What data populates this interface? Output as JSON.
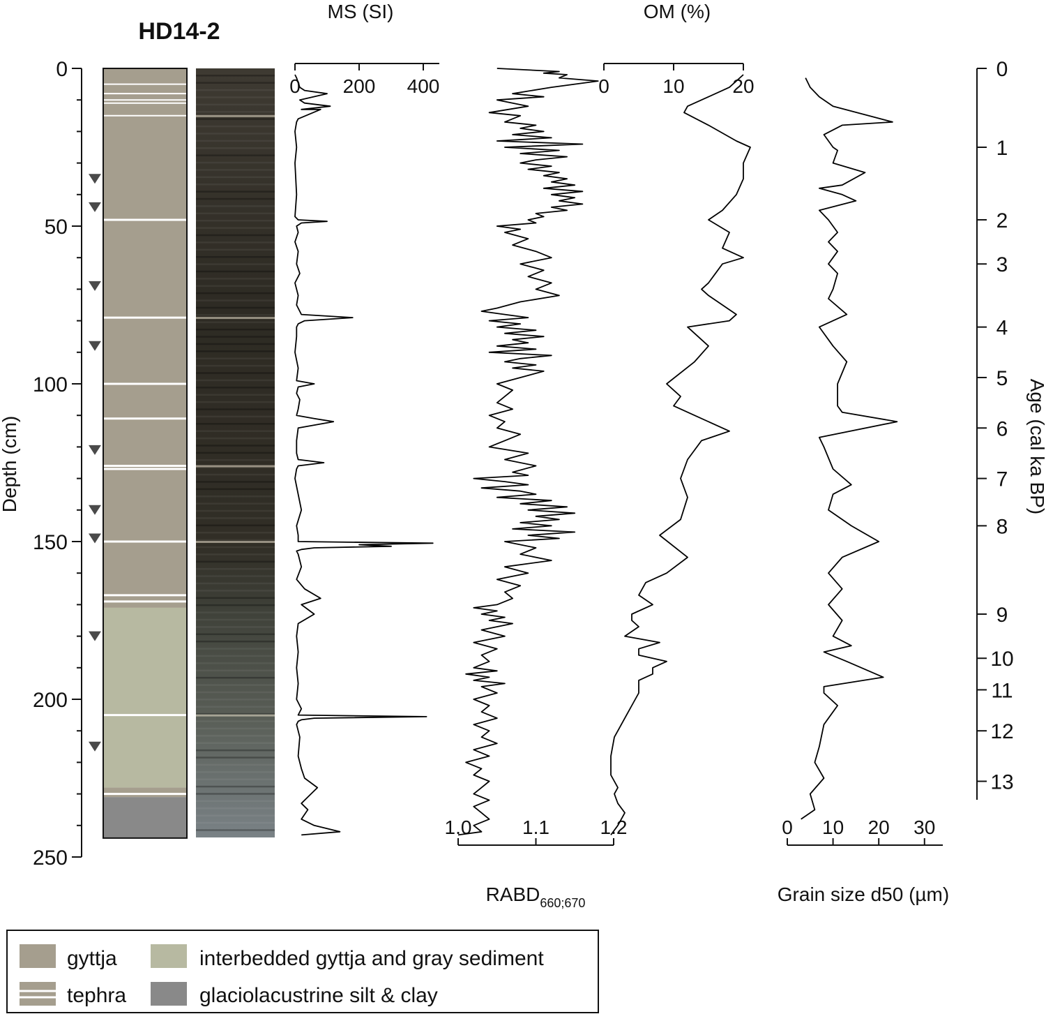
{
  "chart_data": {
    "type": "line",
    "core_name": "HD14-2",
    "depth_axis": {
      "label": "Depth (cm)",
      "range": [
        0,
        250
      ],
      "ticks": [
        0,
        50,
        100,
        150,
        200,
        250
      ]
    },
    "age_axis": {
      "label": "Age (cal ka BP)",
      "ticks": [
        0,
        1,
        2,
        3,
        4,
        5,
        6,
        7,
        8,
        9,
        10,
        11,
        12,
        13
      ],
      "tick_depths_cm": [
        0,
        25,
        48,
        62,
        82,
        98,
        114,
        130,
        145,
        173,
        187,
        197,
        210,
        226
      ]
    },
    "series": [
      {
        "name": "MS (SI)",
        "label": "MS (SI)",
        "axis_position": "top",
        "xlim": [
          0,
          450
        ],
        "ticks": [
          0,
          200,
          400
        ],
        "depth": [
          2,
          3,
          6,
          7,
          8,
          10,
          11,
          12,
          13,
          13,
          16,
          17,
          20,
          25,
          30,
          40,
          47,
          48,
          48.5,
          49,
          50,
          52,
          55,
          58,
          62,
          65,
          68,
          72,
          75,
          78,
          79,
          80,
          81,
          82,
          85,
          90,
          95,
          99,
          100,
          101,
          103,
          105,
          108,
          110,
          111,
          112,
          114,
          118,
          122,
          124,
          125,
          126,
          127,
          130,
          135,
          140,
          145,
          148,
          150,
          150.5,
          151,
          151.5,
          152,
          152.5,
          153,
          154,
          158,
          162,
          165,
          168,
          170,
          173,
          176,
          180,
          185,
          190,
          195,
          200,
          203,
          205,
          205.5,
          206,
          206.5,
          207,
          208,
          212,
          218,
          222,
          225,
          228,
          231,
          233,
          235,
          238,
          240,
          242,
          243
        ],
        "values": [
          0,
          5,
          15,
          30,
          100,
          15,
          30,
          110,
          20,
          80,
          10,
          5,
          0,
          5,
          0,
          5,
          0,
          10,
          100,
          20,
          5,
          10,
          0,
          10,
          5,
          15,
          0,
          10,
          5,
          20,
          180,
          30,
          10,
          5,
          5,
          0,
          10,
          5,
          60,
          10,
          5,
          15,
          10,
          5,
          60,
          120,
          10,
          5,
          5,
          10,
          90,
          10,
          5,
          0,
          10,
          20,
          5,
          10,
          10,
          430,
          200,
          300,
          60,
          20,
          5,
          10,
          20,
          5,
          30,
          80,
          20,
          60,
          10,
          5,
          10,
          5,
          10,
          5,
          20,
          10,
          410,
          60,
          20,
          10,
          5,
          15,
          10,
          20,
          30,
          70,
          40,
          20,
          40,
          20,
          60,
          140,
          20
        ],
        "ms_tick_positions": [
          0,
          200,
          400
        ]
      },
      {
        "name": "RABD660;670",
        "label_main": "RABD",
        "label_sub": "660;670",
        "axis_position": "bottom",
        "xlim": [
          1.0,
          1.2
        ],
        "ticks": [
          "1.0",
          "1.1",
          "1.2"
        ],
        "depth": [
          0,
          1,
          1.5,
          2,
          3,
          4,
          6,
          8,
          9,
          10,
          12,
          14,
          15,
          17,
          18,
          19,
          20,
          21,
          22,
          23,
          24,
          25,
          26,
          27,
          28,
          29,
          30,
          31,
          32,
          33,
          34,
          35,
          36,
          37,
          38,
          39,
          40,
          41,
          42,
          43,
          44,
          45,
          46,
          47,
          48,
          49,
          50,
          51,
          52,
          54,
          56,
          58,
          60,
          62,
          64,
          66,
          68,
          70,
          72,
          74,
          76,
          77,
          78,
          79,
          80,
          81,
          82,
          83,
          84,
          85,
          86,
          87,
          88,
          89,
          90,
          91,
          92,
          93,
          94,
          95,
          96,
          98,
          100,
          102,
          104,
          106,
          108,
          110,
          112,
          114,
          116,
          118,
          120,
          122,
          124,
          126,
          128,
          129,
          130,
          131,
          132,
          133,
          134,
          135,
          136,
          137,
          138,
          139,
          140,
          141,
          142,
          143,
          144,
          145,
          146,
          147,
          148,
          149,
          150,
          152,
          154,
          156,
          158,
          160,
          162,
          164,
          166,
          168,
          170,
          171,
          172,
          173,
          174,
          175,
          176,
          178,
          180,
          182,
          184,
          186,
          188,
          190,
          191,
          192,
          193,
          194,
          195,
          196,
          198,
          200,
          202,
          204,
          206,
          208,
          210,
          212,
          214,
          216,
          218,
          220,
          222,
          224,
          226,
          228,
          230,
          232,
          234,
          236,
          238,
          240,
          242,
          243
        ],
        "values": [
          1.05,
          1.13,
          1.11,
          1.14,
          1.13,
          1.18,
          1.12,
          1.07,
          1.11,
          1.05,
          1.09,
          1.04,
          1.08,
          1.06,
          1.1,
          1.08,
          1.11,
          1.07,
          1.12,
          1.05,
          1.16,
          1.06,
          1.13,
          1.08,
          1.14,
          1.1,
          1.08,
          1.12,
          1.09,
          1.13,
          1.11,
          1.14,
          1.12,
          1.15,
          1.11,
          1.16,
          1.12,
          1.15,
          1.13,
          1.16,
          1.12,
          1.14,
          1.1,
          1.11,
          1.09,
          1.1,
          1.05,
          1.08,
          1.06,
          1.09,
          1.07,
          1.1,
          1.12,
          1.08,
          1.11,
          1.09,
          1.12,
          1.1,
          1.13,
          1.08,
          1.05,
          1.03,
          1.06,
          1.09,
          1.04,
          1.08,
          1.05,
          1.1,
          1.06,
          1.11,
          1.07,
          1.09,
          1.05,
          1.1,
          1.04,
          1.12,
          1.08,
          1.06,
          1.1,
          1.07,
          1.11,
          1.08,
          1.05,
          1.07,
          1.06,
          1.05,
          1.07,
          1.04,
          1.06,
          1.05,
          1.08,
          1.06,
          1.04,
          1.09,
          1.06,
          1.1,
          1.07,
          1.09,
          1.02,
          1.06,
          1.09,
          1.03,
          1.08,
          1.1,
          1.05,
          1.12,
          1.08,
          1.14,
          1.09,
          1.15,
          1.1,
          1.13,
          1.08,
          1.12,
          1.07,
          1.15,
          1.09,
          1.13,
          1.06,
          1.1,
          1.08,
          1.12,
          1.06,
          1.09,
          1.05,
          1.08,
          1.06,
          1.07,
          1.05,
          1.02,
          1.05,
          1.03,
          1.06,
          1.04,
          1.07,
          1.03,
          1.06,
          1.02,
          1.05,
          1.03,
          1.04,
          1.02,
          1.05,
          1.01,
          1.04,
          1.02,
          1.06,
          1.03,
          1.05,
          1.02,
          1.04,
          1.03,
          1.05,
          1.02,
          1.04,
          1.03,
          1.05,
          1.02,
          1.04,
          1.01,
          1.03,
          1.02,
          1.04,
          1.03,
          1.02,
          1.04,
          1.02,
          1.03,
          1.04,
          1.02,
          1.03,
          1.0
        ]
      },
      {
        "name": "OM (%)",
        "label": "OM (%)",
        "axis_position": "top",
        "xlim": [
          0,
          20
        ],
        "ticks": [
          0,
          10,
          20
        ],
        "depth": [
          2,
          6,
          9,
          12,
          14,
          18,
          23,
          25,
          30,
          35,
          40,
          45,
          48,
          52,
          57,
          60,
          62,
          65,
          68,
          70,
          72,
          75,
          78,
          80,
          82,
          88,
          93,
          100,
          104,
          107,
          110,
          115,
          118,
          124,
          130,
          136,
          143,
          148,
          155,
          160,
          163,
          167,
          170,
          173,
          175,
          177,
          180,
          182,
          184,
          186,
          188,
          190,
          192,
          194,
          198,
          202,
          206,
          210,
          212,
          218,
          224,
          228,
          230,
          233,
          236,
          240,
          243
        ],
        "values": [
          20,
          18,
          15,
          12,
          11.5,
          15,
          19,
          21,
          20,
          20,
          19,
          17,
          15,
          18,
          17,
          20,
          17,
          16,
          15,
          14,
          15,
          17,
          19,
          18,
          12,
          15,
          13,
          9,
          11,
          10,
          13,
          18,
          14,
          12,
          11,
          12,
          11,
          8,
          12,
          9,
          6,
          5,
          7,
          4,
          4,
          5,
          3,
          8,
          5,
          5,
          9,
          7,
          7,
          5,
          5,
          4,
          3,
          2,
          1.5,
          1,
          1,
          2,
          1.5,
          2,
          3,
          2,
          1
        ]
      },
      {
        "name": "Grain size d50 (µm)",
        "label": "Grain size d50 (µm)",
        "axis_position": "bottom",
        "xlim": [
          0,
          34
        ],
        "ticks": [
          0,
          10,
          20,
          30
        ],
        "depth": [
          3,
          6,
          9,
          12,
          17,
          18,
          21,
          25,
          26,
          30,
          33,
          37,
          38,
          40,
          42,
          45,
          48,
          52,
          55,
          58,
          62,
          65,
          70,
          73,
          78,
          82,
          88,
          93,
          100,
          107,
          109,
          112,
          117,
          120,
          127,
          132,
          135,
          140,
          145,
          150,
          155,
          160,
          165,
          170,
          175,
          180,
          183,
          185,
          188,
          193,
          196,
          198,
          202,
          208,
          215,
          220,
          225,
          230,
          235,
          238
        ],
        "values": [
          4,
          5,
          7,
          10,
          23,
          12,
          8,
          10,
          11,
          10,
          17,
          12,
          7,
          12,
          15,
          7,
          9,
          11,
          9,
          11,
          9,
          11,
          10,
          9,
          13,
          7,
          10,
          13,
          11,
          11,
          12,
          24,
          7,
          8,
          10,
          14,
          10,
          9,
          14,
          20,
          12,
          9,
          12,
          9,
          12,
          10,
          14,
          8,
          13,
          21,
          8,
          8,
          11,
          8,
          7,
          6,
          8,
          5,
          6,
          3
        ]
      }
    ],
    "core_units": [
      {
        "label": "gyttja",
        "from": 0,
        "to": 171,
        "color": "#a59e8e"
      },
      {
        "label": "interbedded gyttja and gray sediment",
        "from": 171,
        "to": 228,
        "color": "#b7b9a1"
      },
      {
        "label": "tephra",
        "from": 228,
        "to": 231,
        "color": "#a59e8e"
      },
      {
        "label": "glaciolacustrine silt & clay",
        "from": 231,
        "to": 244,
        "color": "#898989"
      }
    ],
    "tephra_depths_cm": [
      5,
      8,
      10,
      11,
      15,
      48,
      79,
      100,
      111,
      126,
      127,
      150,
      167,
      169,
      205,
      230
    ],
    "dating_markers_cm": [
      35,
      44,
      69,
      88,
      121,
      140,
      149,
      180,
      215
    ],
    "legend": [
      {
        "label": "gyttja",
        "swatch": "gyttja",
        "color": "#a59e8e"
      },
      {
        "label": "interbedded gyttja and gray sediment",
        "swatch": "interbedded",
        "color": "#b7b9a1"
      },
      {
        "label": "tephra",
        "swatch": "tephra",
        "color": "#a59e8e"
      },
      {
        "label": "glaciolacustrine silt & clay",
        "swatch": "glacio",
        "color": "#898989"
      }
    ]
  }
}
